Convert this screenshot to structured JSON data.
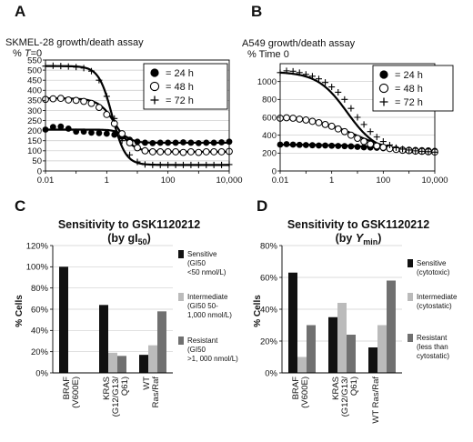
{
  "chart_data": [
    {
      "type": "scatter",
      "panel": "A",
      "title": "SKMEL-28 growth/death assay",
      "ylabel_parts": [
        "% ",
        "T",
        "=0"
      ],
      "xscale": "log",
      "xlim": [
        0.01,
        10000
      ],
      "ylim": [
        0,
        550
      ],
      "yticks": [
        0,
        50,
        100,
        150,
        200,
        250,
        300,
        350,
        400,
        450,
        500,
        550
      ],
      "xticks": [
        0.01,
        1,
        100,
        10000
      ],
      "xtick_labels": [
        "0.01",
        "1",
        "100",
        "10,000"
      ],
      "grid": "horizontal",
      "legend_position": "top-right",
      "series": [
        {
          "name": "24 h",
          "marker": "filled-circle",
          "x": [
            0.01,
            0.0177,
            0.0316,
            0.0562,
            0.1,
            0.178,
            0.316,
            0.562,
            1,
            1.78,
            3.16,
            5.62,
            10,
            17.8,
            31.6,
            56.2,
            100,
            178,
            316,
            562,
            1000,
            1780,
            3160,
            5620,
            10000
          ],
          "y": [
            205,
            218,
            220,
            210,
            195,
            195,
            190,
            188,
            185,
            180,
            170,
            155,
            145,
            140,
            138,
            140,
            140,
            140,
            142,
            140,
            138,
            140,
            140,
            142,
            145
          ],
          "fit": {
            "top": 205,
            "bottom": 140,
            "ec50": 4,
            "hill": 2.5
          }
        },
        {
          "name": "48 h",
          "marker": "open-circle",
          "x": [
            0.01,
            0.0177,
            0.0316,
            0.0562,
            0.1,
            0.178,
            0.316,
            0.562,
            1,
            1.78,
            3.16,
            5.62,
            10,
            17.8,
            31.6,
            56.2,
            100,
            178,
            316,
            562,
            1000,
            1780,
            3160,
            5620,
            10000
          ],
          "y": [
            355,
            358,
            360,
            352,
            350,
            345,
            335,
            315,
            280,
            235,
            185,
            140,
            115,
            100,
            95,
            95,
            95,
            95,
            92,
            95,
            92,
            95,
            95,
            95,
            97
          ],
          "fit": {
            "top": 360,
            "bottom": 95,
            "ec50": 2,
            "hill": 1.6
          }
        },
        {
          "name": "72 h",
          "marker": "plus",
          "x": [
            0.01,
            0.0177,
            0.0316,
            0.0562,
            0.1,
            0.178,
            0.316,
            0.562,
            1,
            1.78,
            3.16,
            5.62,
            10,
            17.8,
            31.6,
            56.2,
            100,
            178,
            316,
            562,
            1000,
            1780,
            3160,
            5620,
            10000
          ],
          "y": [
            520,
            522,
            520,
            518,
            515,
            510,
            495,
            450,
            370,
            260,
            150,
            80,
            45,
            32,
            30,
            30,
            30,
            30,
            30,
            30,
            30,
            30,
            30,
            30,
            32
          ],
          "fit": {
            "top": 520,
            "bottom": 30,
            "ec50": 1.5,
            "hill": 2
          }
        }
      ],
      "legend": [
        "= 24 h",
        "= 48 h",
        "= 72 h"
      ]
    },
    {
      "type": "scatter",
      "panel": "B",
      "title": "A549 growth/death assay",
      "ylabel": "% Time 0",
      "xscale": "log",
      "xlim": [
        0.01,
        10000
      ],
      "ylim": [
        0,
        1200
      ],
      "yticks": [
        0,
        200,
        400,
        600,
        800,
        1000
      ],
      "xticks": [
        0.01,
        1,
        100,
        10000
      ],
      "xtick_labels": [
        "0.01",
        "1",
        "100",
        "10,000"
      ],
      "grid": "horizontal",
      "legend_position": "top-right",
      "series": [
        {
          "name": "24 h",
          "marker": "filled-circle",
          "x": [
            0.01,
            0.0177,
            0.0316,
            0.0562,
            0.1,
            0.178,
            0.316,
            0.562,
            1,
            1.78,
            3.16,
            5.62,
            10,
            17.8,
            31.6,
            56.2,
            100,
            178,
            316,
            562,
            1000,
            1780,
            3160,
            5620,
            10000
          ],
          "y": [
            295,
            300,
            295,
            292,
            290,
            288,
            285,
            285,
            282,
            280,
            278,
            275,
            270,
            265,
            262,
            260,
            255,
            250,
            245,
            240,
            238,
            235,
            232,
            230,
            225
          ],
          "fit": {
            "top": 295,
            "bottom": 220,
            "ec50": 100,
            "hill": 0.5
          }
        },
        {
          "name": "48 h",
          "marker": "open-circle",
          "x": [
            0.01,
            0.0177,
            0.0316,
            0.0562,
            0.1,
            0.178,
            0.316,
            0.562,
            1,
            1.78,
            3.16,
            5.62,
            10,
            17.8,
            31.6,
            56.2,
            100,
            178,
            316,
            562,
            1000,
            1780,
            3160,
            5620,
            10000
          ],
          "y": [
            590,
            595,
            590,
            580,
            570,
            555,
            540,
            520,
            500,
            470,
            440,
            400,
            365,
            330,
            300,
            280,
            265,
            250,
            240,
            232,
            228,
            222,
            220,
            215,
            212
          ],
          "fit": {
            "top": 600,
            "bottom": 210,
            "ec50": 8,
            "hill": 0.55
          }
        },
        {
          "name": "72 h",
          "marker": "plus",
          "x": [
            0.01,
            0.0177,
            0.0316,
            0.0562,
            0.1,
            0.178,
            0.316,
            0.562,
            1,
            1.78,
            3.16,
            5.62,
            10,
            17.8,
            31.6,
            56.2,
            100,
            178,
            316,
            562,
            1000,
            1780,
            3160,
            5620,
            10000
          ],
          "y": [
            1100,
            1120,
            1115,
            1100,
            1080,
            1060,
            1030,
            990,
            940,
            880,
            800,
            700,
            600,
            520,
            440,
            380,
            330,
            290,
            260,
            245,
            235,
            225,
            220,
            215,
            210
          ],
          "fit": {
            "top": 1110,
            "bottom": 200,
            "ec50": 4,
            "hill": 0.75
          }
        }
      ],
      "legend": [
        "= 24 h",
        "= 48 h",
        "= 72 h"
      ]
    },
    {
      "type": "bar",
      "panel": "C",
      "title_line1": "Sensitivity to GSK1120212",
      "title_line2_prefix": "(by gI",
      "title_line2_sub": "50",
      "title_line2_suffix": ")",
      "ylabel": "% Cells",
      "ylim": [
        0,
        120
      ],
      "yticks": [
        0,
        20,
        40,
        60,
        80,
        100,
        120
      ],
      "ytick_labels": [
        "0%",
        "20%",
        "40%",
        "60%",
        "80%",
        "100%",
        "120%"
      ],
      "categories": [
        [
          "BRAF",
          "(V600E)"
        ],
        [
          "KRAS",
          "(G12/G13/",
          "Q61)"
        ],
        [
          "WT",
          "Ras/Raf"
        ]
      ],
      "series": [
        {
          "name": "Sensitive",
          "color": "#111111",
          "values": [
            100,
            64,
            17
          ]
        },
        {
          "name": "Intermediate",
          "color": "#bbbbbb",
          "values": [
            0,
            19,
            26
          ]
        },
        {
          "name": "Resistant",
          "color": "#707070",
          "values": [
            0,
            16,
            58
          ]
        }
      ],
      "legend": [
        {
          "color": "#111111",
          "lines": [
            "Sensitive",
            "(GI50",
            "<50 nmol/L)"
          ]
        },
        {
          "color": "#bbbbbb",
          "lines": [
            "Intermediate",
            "(GI50 50-",
            "1,000 nmol/L)"
          ]
        },
        {
          "color": "#707070",
          "lines": [
            "Resistant",
            "(GI50",
            ">1, 000 nmol/L)"
          ]
        }
      ]
    },
    {
      "type": "bar",
      "panel": "D",
      "title_line1": "Sensitivity to GSK1120212",
      "title_line2_prefix": "(by ",
      "title_line2_italic": "Y",
      "title_line2_sub": "min",
      "title_line2_suffix": ")",
      "ylabel": "% Cells",
      "ylim": [
        0,
        80
      ],
      "yticks": [
        0,
        20,
        40,
        60,
        80
      ],
      "ytick_labels": [
        "0%",
        "20%",
        "40%",
        "60%",
        "80%"
      ],
      "categories": [
        [
          "BRAF",
          "(V600E)"
        ],
        [
          "KRAS",
          "(G12/G13/",
          "Q61)"
        ],
        [
          "WT Ras/Raf"
        ]
      ],
      "series": [
        {
          "name": "Sensitive",
          "color": "#111111",
          "values": [
            63,
            35,
            16
          ]
        },
        {
          "name": "Intermediate",
          "color": "#bbbbbb",
          "values": [
            10,
            44,
            30
          ]
        },
        {
          "name": "Resistant",
          "color": "#707070",
          "values": [
            30,
            24,
            58
          ]
        }
      ],
      "legend": [
        {
          "color": "#111111",
          "lines": [
            "Sensitive",
            "(cytotoxic)"
          ]
        },
        {
          "color": "#bbbbbb",
          "lines": [
            "Intermediate",
            "(cytostatic)"
          ]
        },
        {
          "color": "#707070",
          "lines": [
            "Resistant",
            "(less than",
            "cytostatic)"
          ]
        }
      ]
    }
  ]
}
